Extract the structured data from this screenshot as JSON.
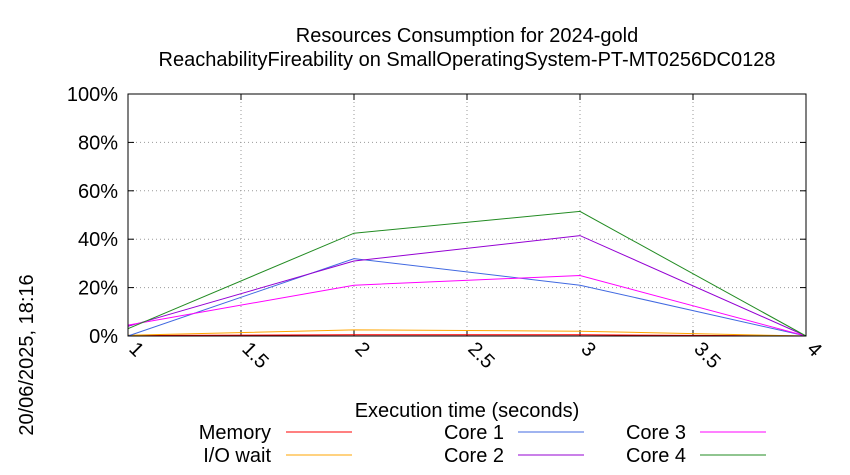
{
  "chart_data": {
    "type": "line",
    "title": "Resources Consumption for 2024-gold",
    "subtitle": "ReachabilityFireability on SmallOperatingSystem-PT-MT0256DC0128",
    "xlabel": "Execution time (seconds)",
    "ylabel": "",
    "side_label": "20/06/2025, 18:16",
    "xlim": [
      1,
      4
    ],
    "ylim": [
      0,
      100
    ],
    "x_ticks": [
      "1",
      "1.5",
      "2",
      "2.5",
      "3",
      "3.5",
      "4"
    ],
    "y_ticks": [
      "0%",
      "20%",
      "40%",
      "60%",
      "80%",
      "100%"
    ],
    "grid": true,
    "legend_position": "bottom",
    "series": [
      {
        "name": "Memory",
        "color": "#ff0000",
        "x": [
          1,
          2,
          3,
          4
        ],
        "y": [
          0.2,
          0.5,
          0.5,
          0
        ]
      },
      {
        "name": "I/O wait",
        "color": "#ffa500",
        "x": [
          1,
          2,
          3,
          4
        ],
        "y": [
          0.3,
          2.5,
          2,
          0
        ]
      },
      {
        "name": "Core 1",
        "color": "#4169e1",
        "x": [
          1,
          2,
          3,
          4
        ],
        "y": [
          0,
          32,
          21,
          0
        ]
      },
      {
        "name": "Core 2",
        "color": "#9400d3",
        "x": [
          1,
          2,
          3,
          4
        ],
        "y": [
          4,
          31,
          41.5,
          0
        ]
      },
      {
        "name": "Core 3",
        "color": "#ff00ff",
        "x": [
          1,
          2,
          3,
          4
        ],
        "y": [
          4.5,
          21,
          25,
          0
        ]
      },
      {
        "name": "Core 4",
        "color": "#228b22",
        "x": [
          1,
          2,
          3,
          4
        ],
        "y": [
          3,
          42.5,
          51.5,
          0
        ]
      }
    ]
  }
}
